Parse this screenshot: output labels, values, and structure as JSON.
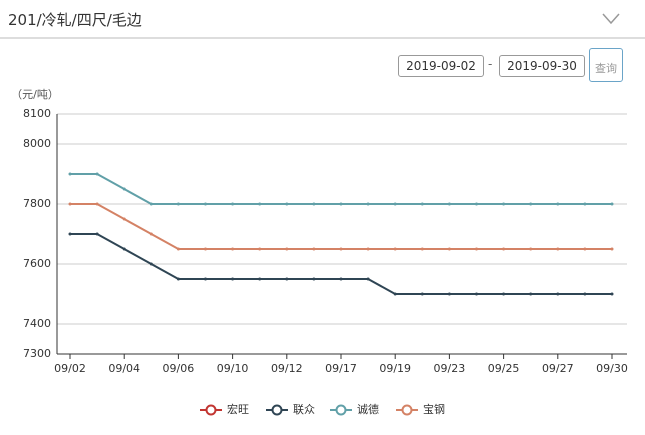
{
  "header": {
    "title": "201/冷轧/四尺/毛边"
  },
  "filter": {
    "start": "2019-09-02",
    "separator": "-",
    "end": "2019-09-30",
    "button": "查询"
  },
  "chart_data": {
    "type": "line",
    "y_label": "（元/吨）",
    "categories": [
      "09/02",
      null,
      "09/04",
      null,
      "09/06",
      null,
      "09/10",
      null,
      "09/12",
      null,
      "09/17",
      null,
      "09/19",
      null,
      "09/23",
      null,
      "09/25",
      null,
      "09/27",
      null,
      "09/30"
    ],
    "series": [
      {
        "name": "宏旺",
        "color": "#c23531",
        "values": [
          null,
          null,
          null,
          null,
          null,
          null,
          null,
          null,
          null,
          null,
          null,
          null,
          null,
          null,
          null,
          null,
          null,
          null,
          null,
          null,
          null
        ]
      },
      {
        "name": "联众",
        "color": "#2f4554",
        "values": [
          7700,
          7700,
          7650,
          7600,
          7550,
          7550,
          7550,
          7550,
          7550,
          7550,
          7550,
          7550,
          7500,
          7500,
          7500,
          7500,
          7500,
          7500,
          7500,
          7500,
          7500
        ]
      },
      {
        "name": "诚德",
        "color": "#61a0a8",
        "values": [
          7900,
          7900,
          7850,
          7800,
          7800,
          7800,
          7800,
          7800,
          7800,
          7800,
          7800,
          7800,
          7800,
          7800,
          7800,
          7800,
          7800,
          7800,
          7800,
          7800,
          7800
        ]
      },
      {
        "name": "宝钢",
        "color": "#d48265",
        "values": [
          7800,
          7800,
          7750,
          7700,
          7650,
          7650,
          7650,
          7650,
          7650,
          7650,
          7650,
          7650,
          7650,
          7650,
          7650,
          7650,
          7650,
          7650,
          7650,
          7650,
          7650
        ]
      }
    ],
    "ylim": [
      7300,
      8100
    ],
    "yticks": [
      7300,
      7400,
      7600,
      7800,
      8000,
      8100
    ],
    "grid": true
  }
}
